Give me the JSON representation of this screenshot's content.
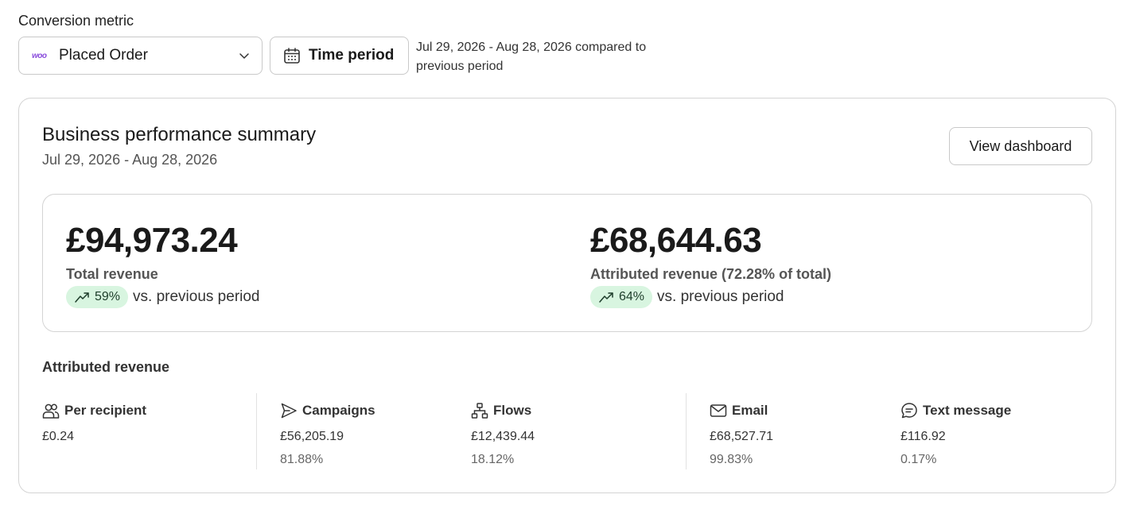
{
  "conversion_metric": {
    "label": "Conversion metric",
    "logo_text": "woo",
    "selected": "Placed Order",
    "logo_icon": "woo-logo"
  },
  "time_period": {
    "button_label": "Time period",
    "description": "Jul 29, 2026 - Aug 28, 2026 compared to previous period",
    "icon": "calendar-icon"
  },
  "summary": {
    "title": "Business performance summary",
    "date_range": "Jul 29, 2026 - Aug 28, 2026",
    "view_button": "View dashboard",
    "total": {
      "amount": "£94,973.24",
      "label": "Total revenue",
      "change": "59%",
      "vs": "vs. previous period"
    },
    "attributed": {
      "amount": "£68,644.63",
      "label": "Attributed revenue (72.28% of total)",
      "change": "64%",
      "vs": "vs. previous period"
    }
  },
  "attributed_revenue": {
    "title": "Attributed revenue",
    "columns": [
      {
        "label": "Per recipient",
        "value": "£0.24",
        "pct": "",
        "icon": "people-icon"
      },
      {
        "label": "Campaigns",
        "value": "£56,205.19",
        "pct": "81.88%",
        "icon": "send-icon"
      },
      {
        "label": "Flows",
        "value": "£12,439.44",
        "pct": "18.12%",
        "icon": "flow-icon"
      },
      {
        "label": "Email",
        "value": "£68,527.71",
        "pct": "99.83%",
        "icon": "mail-icon"
      },
      {
        "label": "Text message",
        "value": "£116.92",
        "pct": "0.17%",
        "icon": "chat-icon"
      }
    ]
  },
  "colors": {
    "badge_bg": "#d8f5e0",
    "woo_purple": "#8a4cdc",
    "border": "#d4d4d4"
  }
}
